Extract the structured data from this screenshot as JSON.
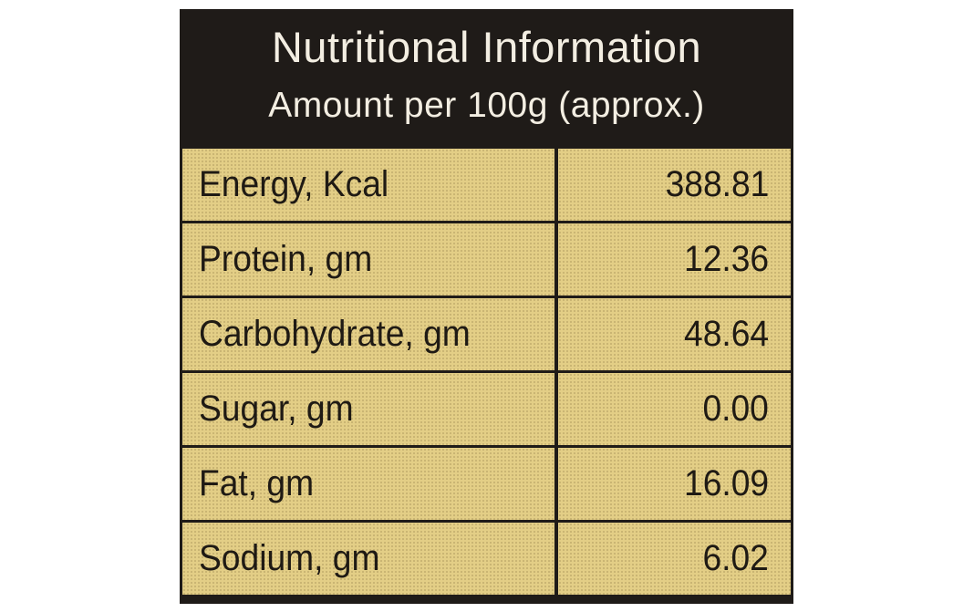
{
  "header": {
    "title": "Nutritional Information",
    "subtitle": "Amount per 100g (approx.)"
  },
  "rows": [
    {
      "label": "Energy, Kcal",
      "value": "388.81"
    },
    {
      "label": "Protein, gm",
      "value": "12.36"
    },
    {
      "label": "Carbohydrate, gm",
      "value": "48.64"
    },
    {
      "label": "Sugar, gm",
      "value": "0.00"
    },
    {
      "label": "Fat, gm",
      "value": "16.09"
    },
    {
      "label": "Sodium, gm",
      "value": "6.02"
    }
  ],
  "colors": {
    "header_bg": "#1f1b18",
    "header_text": "#f3eee2",
    "cell_bg": "#e3ce86",
    "cell_text": "#1f1a14"
  }
}
